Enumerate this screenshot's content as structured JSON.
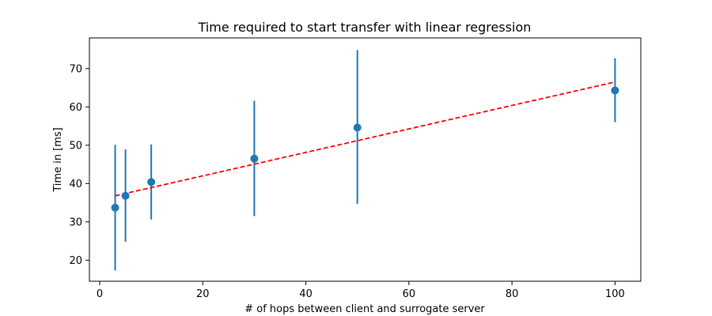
{
  "chart_data": {
    "type": "scatter",
    "title": "Time required to start transfer with linear regression",
    "xlabel": "# of hops between client and surrogate server",
    "ylabel": "Time in [ms]",
    "xlim": [
      -2,
      105
    ],
    "ylim": [
      14.5,
      78
    ],
    "xticks": [
      0,
      20,
      40,
      60,
      80,
      100
    ],
    "yticks": [
      20,
      30,
      40,
      50,
      60,
      70
    ],
    "grid": false,
    "series": [
      {
        "kind": "errorbar",
        "color": "#1f77b4",
        "points": [
          {
            "x": 3,
            "y": 33.7,
            "ylow": 17.3,
            "yhigh": 50.1
          },
          {
            "x": 5,
            "y": 36.8,
            "ylow": 24.8,
            "yhigh": 48.9
          },
          {
            "x": 10,
            "y": 40.4,
            "ylow": 30.6,
            "yhigh": 50.2
          },
          {
            "x": 30,
            "y": 46.5,
            "ylow": 31.5,
            "yhigh": 61.6
          },
          {
            "x": 50,
            "y": 54.6,
            "ylow": 34.7,
            "yhigh": 74.8
          },
          {
            "x": 100,
            "y": 64.3,
            "ylow": 56.0,
            "yhigh": 72.7
          }
        ]
      },
      {
        "kind": "regression-line",
        "color": "#ff0000",
        "style": "dashed",
        "x": [
          3,
          100
        ],
        "y": [
          36.8,
          66.5
        ]
      }
    ]
  }
}
